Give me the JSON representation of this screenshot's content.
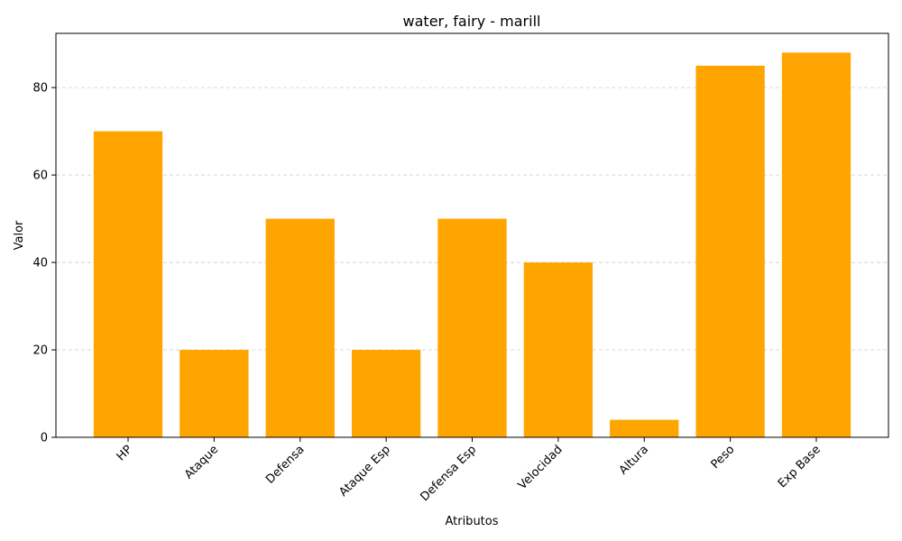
{
  "chart_data": {
    "type": "bar",
    "title": "water, fairy - marill",
    "xlabel": "Atributos",
    "ylabel": "Valor",
    "categories": [
      "HP",
      "Ataque",
      "Defensa",
      "Ataque Esp",
      "Defensa Esp",
      "Velocidad",
      "Altura",
      "Peso",
      "Exp Base"
    ],
    "values": [
      70,
      20,
      50,
      20,
      50,
      40,
      4,
      85,
      88
    ],
    "ylim": [
      0,
      92.4
    ],
    "yticks": [
      0,
      20,
      40,
      60,
      80
    ],
    "grid": "y-dashed",
    "bar_color": "#FFA500"
  }
}
